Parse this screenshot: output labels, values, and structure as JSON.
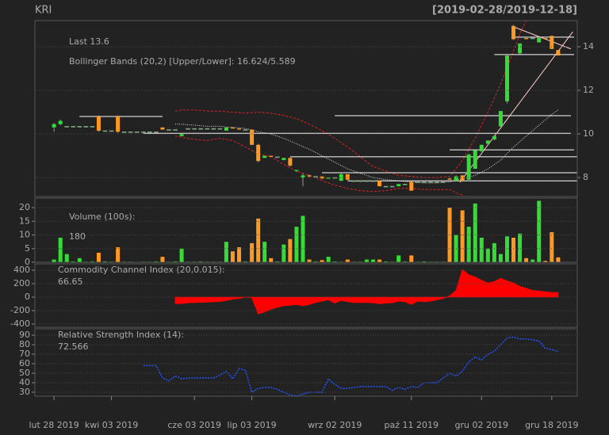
{
  "chart_data": [
    {
      "type": "candlestick",
      "title": "KRI",
      "subtitle": "[2019-02-28/2019-12-18]",
      "annotations": [
        "Last 13.6",
        "Bollinger Bands (20,2) [Upper/Lower]: 16.624/5.589"
      ],
      "annotation_colors": [
        "#ff9933",
        "#dd2222"
      ],
      "up_color": "#33dd33",
      "down_color": "#ff9922",
      "axis_side": "right",
      "xlim": [
        -3,
        82
      ],
      "ylim": [
        7.13,
        15.2
      ],
      "yticks": [
        8,
        10,
        12,
        14
      ],
      "grid": true,
      "open": [
        10.3,
        10.45,
        10.35,
        10.35,
        10.35,
        10.35,
        10.35,
        10.8,
        10.15,
        10.15,
        10.8,
        10.1,
        10.1,
        10.1,
        10.1,
        10.1,
        10.1,
        10.3,
        10.2,
        10.2,
        9.9,
        10.25,
        10.25,
        10.25,
        10.25,
        10.25,
        10.25,
        10.15,
        10.3,
        10.25,
        10.2,
        10.2,
        9.5,
        8.9,
        9.0,
        8.95,
        8.8,
        8.9,
        8.3,
        8.0,
        8.1,
        8.05,
        8.05,
        7.95,
        8.0,
        7.85,
        8.15,
        7.85,
        7.85,
        7.85,
        7.85,
        7.85,
        7.6,
        7.6,
        7.6,
        7.7,
        7.8,
        7.8,
        7.8,
        7.8,
        7.8,
        7.8,
        7.95,
        7.85,
        8.1,
        7.9,
        8.4,
        9.2,
        9.55,
        9.75,
        10.35,
        11.5,
        14.95,
        13.7,
        14.4,
        14.4,
        14.2,
        14.4,
        14.5,
        13.85
      ],
      "high": [
        10.5,
        10.65,
        10.35,
        10.35,
        10.35,
        10.35,
        10.35,
        10.85,
        10.15,
        10.15,
        10.85,
        10.1,
        10.1,
        10.1,
        10.1,
        10.1,
        10.1,
        10.3,
        10.2,
        10.2,
        10.0,
        10.25,
        10.25,
        10.25,
        10.25,
        10.25,
        10.25,
        10.3,
        10.3,
        10.25,
        10.2,
        10.2,
        9.55,
        9.0,
        9.0,
        8.95,
        8.9,
        8.9,
        8.35,
        8.2,
        8.15,
        8.05,
        8.05,
        8.0,
        8.0,
        8.2,
        8.15,
        7.85,
        7.85,
        7.85,
        7.85,
        7.85,
        7.6,
        7.6,
        7.7,
        7.7,
        7.8,
        7.8,
        7.8,
        7.8,
        7.8,
        7.8,
        8.0,
        8.1,
        8.1,
        9.1,
        9.3,
        9.5,
        9.7,
        9.95,
        11.05,
        13.6,
        15.0,
        14.15,
        14.4,
        14.4,
        14.4,
        14.4,
        14.5,
        13.85
      ],
      "low": [
        10.1,
        10.4,
        10.35,
        10.35,
        10.35,
        10.35,
        10.35,
        10.1,
        10.15,
        10.15,
        10.05,
        10.1,
        10.1,
        10.1,
        10.1,
        10.1,
        10.1,
        10.2,
        10.2,
        10.2,
        9.9,
        10.25,
        10.25,
        10.25,
        10.25,
        10.25,
        10.25,
        10.15,
        10.25,
        10.2,
        10.2,
        9.5,
        8.7,
        8.9,
        8.95,
        8.95,
        8.8,
        8.5,
        8.25,
        7.6,
        8.0,
        8.05,
        7.95,
        7.95,
        8.0,
        7.85,
        7.9,
        7.85,
        7.85,
        7.85,
        7.85,
        7.6,
        7.6,
        7.6,
        7.6,
        7.7,
        7.4,
        7.8,
        7.8,
        7.8,
        7.8,
        7.8,
        7.9,
        7.85,
        7.8,
        7.9,
        8.4,
        9.2,
        9.5,
        9.7,
        10.3,
        11.4,
        14.3,
        13.65,
        14.35,
        14.4,
        14.2,
        14.35,
        13.9,
        13.6
      ],
      "close": [
        10.45,
        10.6,
        10.35,
        10.35,
        10.35,
        10.35,
        10.35,
        10.15,
        10.15,
        10.15,
        10.1,
        10.1,
        10.1,
        10.1,
        10.1,
        10.1,
        10.1,
        10.2,
        10.2,
        10.2,
        10.0,
        10.25,
        10.25,
        10.25,
        10.25,
        10.25,
        10.25,
        10.3,
        10.25,
        10.2,
        10.2,
        9.5,
        8.76,
        9.0,
        8.95,
        8.95,
        8.9,
        8.55,
        8.35,
        8.1,
        8.05,
        8.05,
        7.95,
        8.0,
        8.0,
        8.15,
        7.9,
        7.85,
        7.85,
        7.85,
        7.85,
        7.6,
        7.6,
        7.6,
        7.7,
        7.7,
        7.4,
        7.8,
        7.8,
        7.8,
        7.8,
        7.8,
        7.9,
        8.05,
        7.85,
        9.05,
        9.25,
        9.5,
        9.7,
        9.9,
        11.05,
        13.6,
        14.35,
        14.15,
        14.35,
        14.4,
        14.4,
        14.35,
        13.9,
        13.6
      ],
      "bollinger": {
        "band_color": "#dd2222",
        "mid_color": "#dddddd",
        "upper": [
          null,
          null,
          null,
          null,
          null,
          null,
          null,
          null,
          null,
          null,
          null,
          null,
          null,
          null,
          null,
          null,
          null,
          null,
          null,
          11.05,
          11.1,
          11.1,
          11.1,
          11.08,
          11.05,
          11.05,
          11.05,
          11.02,
          11.0,
          10.98,
          10.95,
          10.98,
          11.0,
          10.98,
          10.95,
          10.9,
          10.85,
          10.78,
          10.7,
          10.58,
          10.45,
          10.3,
          10.15,
          9.98,
          9.8,
          9.6,
          9.4,
          9.18,
          8.95,
          8.72,
          8.5,
          8.4,
          8.3,
          8.2,
          8.1,
          8.08,
          8.05,
          8.02,
          8.0,
          8.0,
          8.0,
          8.02,
          8.05,
          8.4,
          8.8,
          9.3,
          9.8,
          10.4,
          11.0,
          11.65,
          12.3,
          13.05,
          13.8,
          14.6,
          15.2,
          15.7,
          16.1,
          16.4,
          16.55,
          16.624
        ],
        "mid": [
          null,
          null,
          null,
          null,
          null,
          null,
          null,
          null,
          null,
          null,
          null,
          null,
          null,
          null,
          null,
          null,
          null,
          null,
          null,
          10.45,
          10.45,
          10.42,
          10.4,
          10.38,
          10.35,
          10.35,
          10.35,
          10.32,
          10.3,
          10.28,
          10.25,
          10.18,
          10.1,
          10.05,
          10.0,
          9.9,
          9.8,
          9.68,
          9.55,
          9.42,
          9.3,
          9.15,
          9.0,
          8.85,
          8.7,
          8.55,
          8.4,
          8.3,
          8.2,
          8.1,
          8.0,
          7.95,
          7.9,
          7.88,
          7.85,
          7.82,
          7.8,
          7.78,
          7.75,
          7.75,
          7.75,
          7.78,
          7.8,
          7.88,
          7.95,
          8.02,
          8.1,
          8.25,
          8.4,
          8.6,
          8.8,
          9.1,
          9.4,
          9.65,
          9.9,
          10.15,
          10.4,
          10.65,
          10.9,
          11.107
        ],
        "lower": [
          null,
          null,
          null,
          null,
          null,
          null,
          null,
          null,
          null,
          null,
          null,
          null,
          null,
          null,
          null,
          null,
          null,
          null,
          null,
          9.9,
          9.85,
          9.8,
          9.75,
          9.72,
          9.7,
          9.75,
          9.8,
          9.75,
          9.7,
          9.55,
          9.4,
          9.25,
          9.1,
          9.02,
          8.95,
          8.78,
          8.6,
          8.45,
          8.3,
          8.2,
          8.1,
          7.98,
          7.85,
          7.75,
          7.65,
          7.58,
          7.5,
          7.45,
          7.4,
          7.38,
          7.35,
          7.38,
          7.4,
          7.45,
          7.5,
          7.5,
          7.5,
          7.48,
          7.45,
          7.45,
          7.45,
          7.45,
          7.45,
          7.3,
          7.2,
          7.0,
          6.8,
          6.6,
          6.4,
          6.2,
          6.0,
          5.8,
          5.6,
          5.5,
          5.45,
          5.45,
          5.5,
          5.55,
          5.57,
          5.589
        ]
      },
      "levels": [
        {
          "value": 10.8,
          "from": 4,
          "to": 17
        },
        {
          "value": 10.03,
          "from": 14,
          "to": 81
        },
        {
          "value": 10.84,
          "from": 44,
          "to": 81
        },
        {
          "value": 9.27,
          "from": 62,
          "to": 81.5
        },
        {
          "value": 8.95,
          "from": 37,
          "to": 82
        },
        {
          "value": 8.22,
          "from": 42,
          "to": 82
        },
        {
          "value": 7.85,
          "from": 46,
          "to": 82
        },
        {
          "value": 14.44,
          "from": 72.3,
          "to": 81.5
        },
        {
          "value": 13.64,
          "from": 69,
          "to": 81.5
        }
      ],
      "level_color": "#ffffff",
      "trendlines": [
        {
          "x": [
            63.6,
            81.3
          ],
          "y": [
            7.78,
            14.69
          ],
          "color": "#ffcccc"
        },
        {
          "x": [
            71.7,
            81.0
          ],
          "y": [
            14.95,
            13.9
          ],
          "color": "#ffcccc"
        }
      ]
    },
    {
      "type": "bar",
      "annotations": [
        "Volume (100s):",
        "180"
      ],
      "annotation_colors": [
        "#888888",
        "#ff9933"
      ],
      "xlim": [
        -3,
        82
      ],
      "ylim": [
        0,
        23.5
      ],
      "yticks": [
        0,
        5,
        10,
        15,
        20
      ],
      "grid": true,
      "values": [
        1,
        9,
        3,
        0.3,
        1.5,
        0.2,
        0.3,
        3.5,
        0.3,
        0.2,
        5.5,
        0.2,
        0.2,
        0.1,
        0.2,
        0.2,
        0.3,
        2,
        0.2,
        0.3,
        5,
        0.2,
        0.2,
        0.3,
        0.2,
        0.2,
        0.2,
        7.5,
        4,
        5.5,
        0.3,
        7,
        16,
        7.5,
        1.5,
        0.3,
        6.5,
        8.5,
        13,
        17,
        1,
        0.3,
        0.8,
        2,
        0.3,
        0.2,
        1,
        0.2,
        0.2,
        1,
        1,
        1,
        0.3,
        0.2,
        2.5,
        0.3,
        2.5,
        0.2,
        0.3,
        0.2,
        0.2,
        0.2,
        20,
        10,
        19,
        13,
        21.5,
        9,
        5,
        7,
        3,
        9.5,
        9,
        10.5,
        1.5,
        1,
        22.5,
        0.5,
        11,
        1.8
      ]
    },
    {
      "type": "area",
      "annotations": [
        "Commodity Channel Index (20,0.015):",
        "66.65"
      ],
      "annotation_colors": [
        "#888888",
        "#ff2222"
      ],
      "color": "#ff0000",
      "xlim": [
        -3,
        82
      ],
      "ylim": [
        -447,
        494
      ],
      "yticks": [
        -400,
        -200,
        0,
        200,
        400
      ],
      "grid": true,
      "values": [
        null,
        null,
        null,
        null,
        null,
        null,
        null,
        null,
        null,
        null,
        null,
        null,
        null,
        null,
        null,
        null,
        null,
        null,
        null,
        -100,
        -95,
        -85,
        -80,
        -78,
        -75,
        -70,
        -65,
        -50,
        -30,
        -20,
        0,
        -10,
        -250,
        -220,
        -180,
        -150,
        -130,
        -120,
        -110,
        -130,
        -110,
        -80,
        -60,
        -40,
        -90,
        -50,
        -70,
        -80,
        -80,
        -80,
        -85,
        -100,
        -90,
        -85,
        -60,
        -70,
        -110,
        -60,
        -70,
        -60,
        -40,
        -20,
        20,
        100,
        410,
        330,
        300,
        250,
        210,
        230,
        280,
        240,
        210,
        160,
        130,
        100,
        90,
        80,
        70,
        66.65
      ]
    },
    {
      "type": "line",
      "annotations": [
        "Relative Strength Index (14):",
        "72.566"
      ],
      "annotation_colors": [
        "#888888",
        "#0044ee"
      ],
      "color": "#2255ff",
      "xlim": [
        -3,
        82
      ],
      "ylim": [
        25.8,
        96.7
      ],
      "yticks": [
        30,
        40,
        50,
        60,
        70,
        80,
        90
      ],
      "grid": true,
      "values": [
        null,
        null,
        null,
        null,
        null,
        null,
        null,
        null,
        null,
        null,
        null,
        null,
        null,
        null,
        58,
        58,
        58,
        45,
        42,
        47,
        44,
        45,
        45,
        45,
        45,
        45,
        48,
        52,
        44,
        55,
        53,
        30,
        34,
        35,
        35,
        33,
        30,
        27,
        26,
        28,
        30,
        30,
        30,
        44,
        38,
        34,
        34,
        35,
        36,
        36,
        36,
        36,
        36,
        32,
        35,
        33,
        36,
        35,
        40,
        40,
        40,
        45,
        50,
        47,
        52,
        62,
        67,
        64,
        70,
        73,
        80,
        87,
        88,
        86,
        86,
        85,
        84,
        76,
        75,
        72.566
      ],
      "xticks": [
        {
          "value": 0,
          "label": "lut 28 2019"
        },
        {
          "value": 9,
          "label": "kwi 03 2019"
        },
        {
          "value": 22,
          "label": "cze 03 2019"
        },
        {
          "value": 31,
          "label": "lip 03 2019"
        },
        {
          "value": 44,
          "label": "wrz 02 2019"
        },
        {
          "value": 56,
          "label": "paź 11 2019"
        },
        {
          "value": 67,
          "label": "gru 02 2019"
        },
        {
          "value": 78,
          "label": "gru 18 2019"
        }
      ]
    }
  ]
}
